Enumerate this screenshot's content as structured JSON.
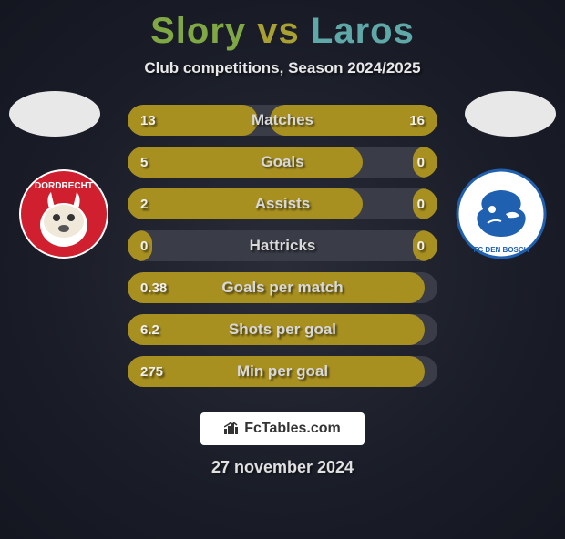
{
  "title": {
    "player1": "Slory",
    "vs": "vs",
    "player2": "Laros"
  },
  "subtitle": "Club competitions, Season 2024/2025",
  "date": "27 november 2024",
  "branding": "FcTables.com",
  "colors": {
    "bar_fill": "#a89020",
    "bar_bg": "#3a3d48",
    "title_p1": "#7fa845",
    "title_vs": "#a8a030",
    "title_p2": "#5fa8a8"
  },
  "clubs": {
    "left": {
      "name": "FC Dordrecht",
      "badge_bg": "#d02030",
      "badge_accent": "#ffffff"
    },
    "right": {
      "name": "FC Den Bosch",
      "badge_bg": "#ffffff",
      "badge_accent": "#2060b0"
    }
  },
  "stats": [
    {
      "label": "Matches",
      "left_val": "13",
      "right_val": "16",
      "left_pct": 42,
      "right_pct": 54
    },
    {
      "label": "Goals",
      "left_val": "5",
      "right_val": "0",
      "left_pct": 76,
      "right_pct": 8
    },
    {
      "label": "Assists",
      "left_val": "2",
      "right_val": "0",
      "left_pct": 76,
      "right_pct": 8
    },
    {
      "label": "Hattricks",
      "left_val": "0",
      "right_val": "0",
      "left_pct": 8,
      "right_pct": 8
    },
    {
      "label": "Goals per match",
      "left_val": "0.38",
      "right_val": "",
      "left_pct": 96,
      "right_pct": 0
    },
    {
      "label": "Shots per goal",
      "left_val": "6.2",
      "right_val": "",
      "left_pct": 96,
      "right_pct": 0
    },
    {
      "label": "Min per goal",
      "left_val": "275",
      "right_val": "",
      "left_pct": 96,
      "right_pct": 0
    }
  ]
}
